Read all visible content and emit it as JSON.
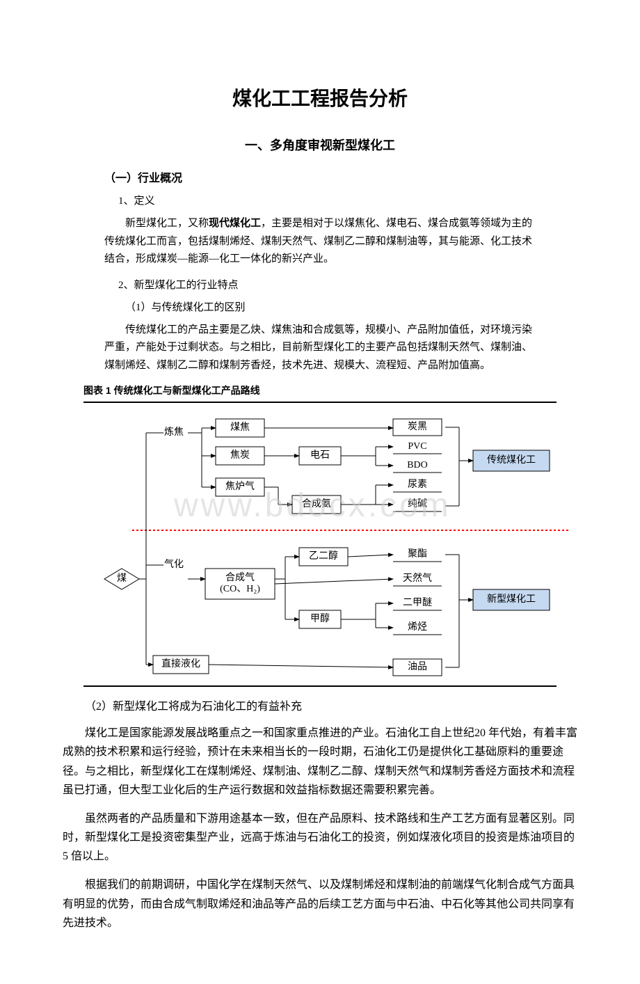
{
  "title": "煤化工工程报告分析",
  "section1": {
    "heading": "一、多角度审视新型煤化工",
    "sub1": {
      "heading": "（一）行业概况",
      "p1_label": "1、定义",
      "p1_body_pre": "新型煤化工，又称",
      "p1_body_bold": "现代煤化工",
      "p1_body_post": "，主要是相对于以煤焦化、煤电石、煤合成氨等领域为主的传统煤化工而言，包括煤制烯烃、煤制天然气、煤制乙二醇和煤制油等，其与能源、化工技术结合，形成煤炭—能源—化工一体化的新兴产业。",
      "p2_label": "2、新型煤化工的行业特点",
      "p2_sub1": "（1）与传统煤化工的区别",
      "p2_sub1_body": "传统煤化工的产品主要是乙炔、煤焦油和合成氨等，规模小、产品附加值低，对环境污染严重，产能处于过剩状态。与之相比，目前新型煤化工的主要产品包括煤制天然气、煤制油、煤制烯烃、煤制乙二醇和煤制芳香烃，技术先进、规模大、流程短、产品附加值高。"
    }
  },
  "chart": {
    "caption": "图表 1 传统煤化工与新型煤化工产品路线",
    "colors": {
      "box_stroke": "#000000",
      "box_fill": "#ffffff",
      "label_box_fill": "#c5d9f1",
      "label_box_stroke": "#000000",
      "line": "#000000",
      "divider": "#ff0000",
      "text": "#000000"
    },
    "font_size": 14,
    "nodes": {
      "coal": "煤",
      "col1_top": "炼焦",
      "col1_mid": "气化",
      "col1_bot": "直接液化",
      "top_a": "煤焦",
      "top_b": "焦炭",
      "top_c": "焦炉气",
      "mid_box": "合成气\n(CO、H₂)",
      "electrode": "电石",
      "synth_ammonia": "合成氨",
      "ethylene_glycol": "乙二醇",
      "methanol": "甲醇",
      "out_top": [
        "炭黑",
        "PVC",
        "BDO",
        "尿素",
        "纯碱"
      ],
      "out_bot": [
        "聚酯",
        "天然气",
        "二甲醚",
        "烯烃",
        "油品"
      ],
      "label_top": "传统煤化工",
      "label_bot": "新型煤化工"
    }
  },
  "watermark": "www.bdocx.com",
  "section2": {
    "heading": "（2）新型煤化工将成为石油化工的有益补充",
    "p1": "煤化工是国家能源发展战略重点之一和国家重点推进的产业。石油化工自上世纪20 年代始，有着丰富成熟的技术积累和运行经验，预计在未来相当长的一段时期，石油化工仍是提供化工基础原料的重要途径。与之相比，新型煤化工在煤制烯烃、煤制油、煤制乙二醇、煤制天然气和煤制芳香烃方面技术和流程虽已打通，但大型工业化后的生产运行数据和效益指标数据还需要积累完善。",
    "p2": "虽然两者的产品质量和下游用途基本一致，但在产品原料、技术路线和生产工艺方面有显著区别。同时，新型煤化工是投资密集型产业，远高于炼油与石油化工的投资，例如煤液化项目的投资是炼油项目的 5 倍以上。",
    "p3": "根据我们的前期调研，中国化学在煤制天然气、以及煤制烯烃和煤制油的前端煤气化制合成气方面具有明显的优势，而由合成气制取烯烃和油品等产品的后续工艺方面与中石油、中石化等其他公司共同享有先进技术。"
  }
}
